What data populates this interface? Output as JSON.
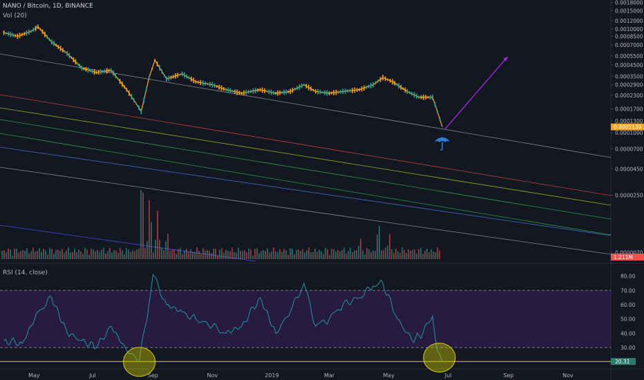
{
  "header": {
    "title": "NANO / Bitcoin, 1D, BINANCE",
    "volume_label": "Vol (20)",
    "rsi_label": "RSI (14, close)"
  },
  "colors": {
    "background": "#131722",
    "candle_up": "#26a69a",
    "candle_down": "#f7a21b",
    "price_tag": "#f7a21b",
    "vol_tag": "#ef5350",
    "rsi_line": "#2196a3",
    "rsi_band": "#3a1f5a",
    "rsi_tag": "#2a7d6e",
    "arrow": "#9c27e0",
    "highlight": "#c8b400",
    "umbrella": "#2f7bd8"
  },
  "chart_data": [
    {
      "type": "line",
      "name": "price",
      "scale": "log",
      "ylim": [
        5.8e-06,
        0.0019
      ],
      "y_ticks": [
        "0.0018000",
        "0.0015000",
        "0.0012000",
        "0.0010000",
        "0.0008500",
        "0.0007000",
        "0.0005500",
        "0.0004500",
        "0.0003500",
        "0.0002900",
        "0.0002300",
        "0.0001700",
        "0.0001300",
        "0.0001000",
        "0.0000700",
        "0.0000450",
        "0.0000250",
        "0.0000070"
      ],
      "x_ticks": [
        "May",
        "Jul",
        "Sep",
        "Nov",
        "2019",
        "Mar",
        "May",
        "Jul",
        "Sep",
        "Nov"
      ],
      "last_price_label": "0.0001139",
      "price_points": [
        [
          "2018-04-01",
          0.00092
        ],
        [
          "2018-04-15",
          0.00085
        ],
        [
          "2018-04-29",
          0.00095
        ],
        [
          "2018-05-06",
          0.00105
        ],
        [
          "2018-05-20",
          0.00075
        ],
        [
          "2018-06-05",
          0.00058
        ],
        [
          "2018-06-20",
          0.00042
        ],
        [
          "2018-07-05",
          0.00038
        ],
        [
          "2018-07-20",
          0.0004
        ],
        [
          "2018-08-05",
          0.00026
        ],
        [
          "2018-08-15",
          0.00019
        ],
        [
          "2018-08-20",
          0.00016
        ],
        [
          "2018-08-28",
          0.00034
        ],
        [
          "2018-09-03",
          0.0005
        ],
        [
          "2018-09-15",
          0.00033
        ],
        [
          "2018-10-01",
          0.00037
        ],
        [
          "2018-10-15",
          0.00031
        ],
        [
          "2018-11-01",
          0.00029
        ],
        [
          "2018-11-15",
          0.00026
        ],
        [
          "2018-12-01",
          0.00024
        ],
        [
          "2018-12-20",
          0.00026
        ],
        [
          "2019-01-05",
          0.00024
        ],
        [
          "2019-01-20",
          0.00025
        ],
        [
          "2019-02-03",
          0.00029
        ],
        [
          "2019-02-15",
          0.00025
        ],
        [
          "2019-03-01",
          0.00024
        ],
        [
          "2019-03-15",
          0.00025
        ],
        [
          "2019-04-01",
          0.00026
        ],
        [
          "2019-04-15",
          0.00029
        ],
        [
          "2019-04-25",
          0.00034
        ],
        [
          "2019-05-05",
          0.00031
        ],
        [
          "2019-05-20",
          0.00025
        ],
        [
          "2019-06-01",
          0.00022
        ],
        [
          "2019-06-15",
          0.00022
        ],
        [
          "2019-06-20",
          0.00016
        ],
        [
          "2019-06-25",
          0.0001139
        ]
      ],
      "arrow_target": [
        "2019-08-31",
        0.00054
      ],
      "volume_points": [
        [
          "2018-08-20",
          140
        ],
        [
          "2018-08-28",
          100
        ],
        [
          "2018-09-05",
          70
        ],
        [
          "2018-09-15",
          45
        ],
        [
          "2019-04-01",
          35
        ],
        [
          "2019-04-20",
          60
        ],
        [
          "2019-05-01",
          40
        ],
        [
          "2018-05-06",
          20
        ]
      ],
      "volume_last_label": "1.211M"
    },
    {
      "type": "line",
      "name": "rsi",
      "ylim": [
        18,
        88
      ],
      "y_ticks": [
        80,
        70,
        60,
        50,
        40,
        30
      ],
      "bands": [
        30,
        70
      ],
      "last_value_label": "20.31",
      "points": [
        [
          "2018-04-01",
          35
        ],
        [
          "2018-04-20",
          33
        ],
        [
          "2018-05-06",
          55
        ],
        [
          "2018-05-20",
          65
        ],
        [
          "2018-06-05",
          40
        ],
        [
          "2018-06-20",
          35
        ],
        [
          "2018-07-05",
          30
        ],
        [
          "2018-07-20",
          45
        ],
        [
          "2018-08-05",
          28
        ],
        [
          "2018-08-18",
          21
        ],
        [
          "2018-08-28",
          60
        ],
        [
          "2018-09-01",
          81
        ],
        [
          "2018-09-15",
          60
        ],
        [
          "2018-10-01",
          55
        ],
        [
          "2018-10-15",
          50
        ],
        [
          "2018-11-01",
          45
        ],
        [
          "2018-11-15",
          40
        ],
        [
          "2018-12-01",
          45
        ],
        [
          "2018-12-20",
          65
        ],
        [
          "2019-01-05",
          40
        ],
        [
          "2019-01-20",
          55
        ],
        [
          "2019-02-03",
          75
        ],
        [
          "2019-02-15",
          45
        ],
        [
          "2019-03-01",
          50
        ],
        [
          "2019-03-15",
          60
        ],
        [
          "2019-04-01",
          65
        ],
        [
          "2019-04-15",
          73
        ],
        [
          "2019-04-25",
          75
        ],
        [
          "2019-05-10",
          50
        ],
        [
          "2019-05-25",
          35
        ],
        [
          "2019-06-05",
          40
        ],
        [
          "2019-06-15",
          52
        ],
        [
          "2019-06-20",
          28
        ],
        [
          "2019-06-25",
          20.31
        ]
      ]
    }
  ]
}
